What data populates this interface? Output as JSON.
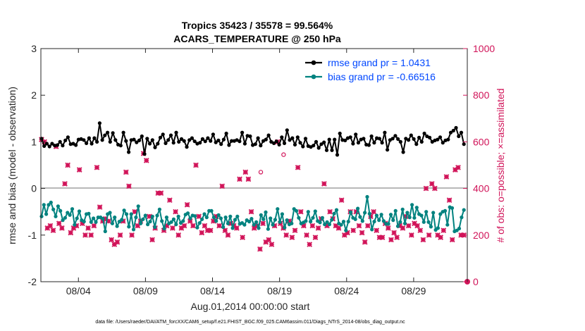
{
  "chart_data": {
    "type": "line",
    "title_line1": "Tropics 35423 / 35578 = 99.564%",
    "title_line2": "ACARS_TEMPERATURE @ 250 hPa",
    "xlabel": "Aug.01,2014 00:00:00 start",
    "ylabel_left": "rmse and bias (model - observation)",
    "ylabel_right": "# of obs: o=possible; ×=assimilated",
    "ylim_left": [
      -2,
      3
    ],
    "ylim_right": [
      0,
      1000
    ],
    "xlim": [
      1.2,
      33
    ],
    "left_ticks": [
      "-2",
      "-1",
      "0",
      "1",
      "2",
      "3"
    ],
    "right_ticks": [
      "0",
      "200",
      "400",
      "600",
      "800",
      "1000"
    ],
    "x_ticks": [
      {
        "day": 4,
        "label": "08/04"
      },
      {
        "day": 9,
        "label": "08/09"
      },
      {
        "day": 14,
        "label": "08/14"
      },
      {
        "day": 19,
        "label": "08/19"
      },
      {
        "day": 24,
        "label": "08/24"
      },
      {
        "day": 29,
        "label": "08/29"
      }
    ],
    "series": [
      {
        "name": "rmse grand pr = 1.0431",
        "color": "#000000",
        "axis": "left",
        "values": [
          1.07,
          0.91,
          0.96,
          0.9,
          0.96,
          0.92,
          0.93,
          1.0,
          0.92,
          1.03,
          1.1,
          0.95,
          0.96,
          0.93,
          1.05,
          1.06,
          1.04,
          0.97,
          1.08,
          0.96,
          1.08,
          1.0,
          1.4,
          1.04,
          1.14,
          1.2,
          1.0,
          1.19,
          1.04,
          0.94,
          0.92,
          1.2,
          1.02,
          0.78,
          1.04,
          1.05,
          0.99,
          1.03,
          1.12,
          0.74,
          1.07,
          0.96,
          1.04,
          0.88,
          0.96,
          1.09,
          1.16,
          0.97,
          1.04,
          1.14,
          0.98,
          1.2,
          1.0,
          1.06,
          1.02,
          0.89,
          1.04,
          1.08,
          1.01,
          0.96,
          0.98,
          1.06,
          1.01,
          1.08,
          1.02,
          1.16,
          0.99,
          1.03,
          0.95,
          1.05,
          1.18,
          0.93,
          1.02,
          1.02,
          1.04,
          1.01,
          1.2,
          0.96,
          1.13,
          1.12,
          0.93,
          0.95,
          1.08,
          0.92,
          1.02,
          1.05,
          1.14,
          1.0,
          0.97,
          1.01,
          0.94,
          1.1,
          0.97,
          1.25,
          1.04,
          1.08,
          0.94,
          1.1,
          0.98,
          0.9,
          1.07,
          0.91,
          0.89,
          0.92,
          1.0,
          0.87,
          0.95,
          0.99,
          0.82,
          1.05,
          0.82,
          1.05,
          0.72,
          1.18,
          1.04,
          1.03,
          1.08,
          1.1,
          0.96,
          1.16,
          0.98,
          1.05,
          1.07,
          0.94,
          0.93,
          1.12,
          0.98,
          1.08,
          1.07,
          0.98,
          1.2,
          0.83,
          1.04,
          1.07,
          1.13,
          1.06,
          1.0,
          0.78,
          1.07,
          1.04,
          1.14,
          1.06,
          0.95,
          1.09,
          1.0,
          1.18,
          1.12,
          1.09,
          1.0,
          1.03,
          1.05,
          1.1,
          0.98,
          1.03,
          1.05,
          1.2,
          1.24,
          1.3,
          1.12,
          1.2,
          0.95
        ]
      },
      {
        "name": "bias grand pr = -0.66516",
        "color": "#00827f",
        "axis": "left",
        "values": [
          -0.6,
          -0.35,
          -0.55,
          -0.35,
          -0.3,
          -0.45,
          -0.6,
          -0.38,
          -0.48,
          -0.68,
          -0.63,
          -0.52,
          -0.57,
          -0.44,
          -0.78,
          -0.64,
          -0.49,
          -0.68,
          -0.71,
          -0.55,
          -0.54,
          -0.72,
          -0.64,
          -0.72,
          -0.62,
          -0.62,
          -0.65,
          -0.92,
          -0.55,
          -0.52,
          -0.75,
          -0.62,
          -0.81,
          -0.71,
          -0.67,
          -0.47,
          -0.55,
          -0.82,
          -0.55,
          -0.88,
          -0.62,
          -0.38,
          -0.75,
          -0.66,
          -0.58,
          -0.77,
          -0.71,
          -0.6,
          -0.83,
          -0.58,
          -0.45,
          -0.7,
          -0.86,
          -0.62,
          -0.75,
          -0.72,
          -0.66,
          -0.77,
          -0.6,
          -0.74,
          -0.7,
          -0.56,
          -0.53,
          -0.64,
          -0.58,
          -0.59,
          -0.84,
          -0.74,
          -0.66,
          -0.55,
          -0.62,
          -0.48,
          -0.48,
          -0.62,
          -0.7,
          -0.57,
          -0.64,
          -0.83,
          -0.62,
          -0.75,
          -0.6,
          -0.85,
          -0.67,
          -0.6,
          -0.76,
          -0.74,
          -0.78,
          -0.68,
          -0.71,
          -0.65,
          -0.78,
          -0.72,
          -0.85,
          -0.57,
          -0.66,
          -0.51,
          -0.87,
          -0.64,
          -0.78,
          -0.67,
          -0.44,
          -0.72,
          -0.55,
          -0.84,
          -0.68,
          -0.77,
          -0.75,
          -0.44,
          -0.48,
          -0.63,
          -0.75,
          -0.73,
          -0.7,
          -0.5,
          -0.71,
          -0.63,
          -0.49,
          -0.7,
          -0.73,
          -0.63,
          -0.77,
          -0.72,
          -0.77,
          -0.67,
          -0.54,
          -0.46,
          -0.75,
          -0.78,
          -0.71,
          -0.9,
          -0.71,
          -0.51,
          -0.63,
          -0.66,
          -0.43,
          -0.61,
          -0.7,
          -0.52,
          -0.18,
          -0.54,
          -0.88,
          -0.71,
          -0.58,
          -0.68,
          -0.56,
          -0.7,
          -0.76,
          -0.76,
          -0.56,
          -0.68,
          -0.48,
          -0.81,
          -0.72,
          -0.45,
          -0.75,
          -0.52,
          -0.62,
          -0.35,
          -0.63,
          -0.41,
          -0.55,
          -0.58,
          -0.72,
          -0.5,
          -0.72,
          -0.82,
          -0.52,
          -0.89,
          -0.85,
          -0.55,
          -0.5,
          -0.48,
          -0.78,
          -0.4,
          -0.42,
          -0.92,
          -0.9,
          -0.86,
          -0.62,
          -0.46
        ]
      }
    ],
    "obs_count": {
      "axis": "right",
      "color": "#d11459",
      "values": [
        610,
        600,
        230,
        240,
        220,
        580,
        250,
        230,
        420,
        500,
        210,
        230,
        240,
        480,
        250,
        200,
        230,
        200,
        240,
        490,
        320,
        260,
        270,
        260,
        180,
        160,
        170,
        200,
        260,
        470,
        410,
        200,
        300,
        240,
        260,
        550,
        520,
        280,
        180,
        230,
        380,
        380,
        220,
        240,
        350,
        230,
        300,
        200,
        230,
        240,
        330,
        260,
        240,
        500,
        280,
        210,
        240,
        220,
        220,
        260,
        280,
        240,
        410,
        220,
        200,
        250,
        240,
        230,
        440,
        190,
        470,
        440,
        300,
        230,
        240,
        140,
        250,
        170,
        180,
        160,
        240,
        600,
        250,
        230,
        200,
        260,
        190,
        220,
        490,
        300,
        240,
        200,
        160,
        240,
        190,
        230,
        270,
        420,
        240,
        300,
        270,
        240,
        230,
        350,
        200,
        210,
        300,
        220,
        300,
        240,
        210,
        170,
        240,
        280,
        300,
        220,
        190,
        190,
        250,
        230,
        180,
        210,
        190,
        240,
        230,
        280,
        240,
        200,
        250,
        240,
        220,
        180,
        400,
        200,
        420,
        400,
        200,
        190,
        220,
        450,
        350,
        180,
        480,
        490,
        200,
        200
      ]
    },
    "possible_markers": [
      {
        "day": 17.6,
        "count": 470
      },
      {
        "day": 19.3,
        "count": 545
      }
    ],
    "last_point": {
      "label": "0"
    },
    "footer": "data file: /Users/raeder/DAI/ATM_forcXX/CAM6_setup/f.e21.FHIST_BGC.f09_025.CAM6assim.011/Diags_NTrS_2014-08/obs_diag_output.nc"
  },
  "colors": {
    "rmse": "#000000",
    "bias": "#00827f",
    "obs": "#d11459",
    "legend_text": "#0047ff",
    "zero_line": "#a0a0a0"
  }
}
